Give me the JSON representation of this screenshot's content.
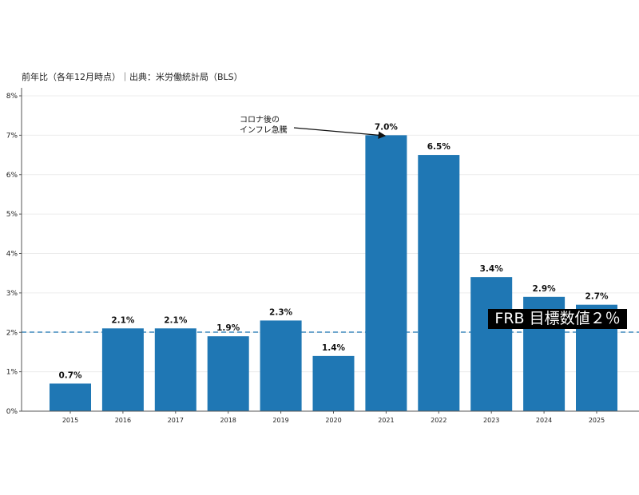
{
  "header": {
    "subtitle": "前年比（各年12月時点）｜出典：米労働統計局（BLS）"
  },
  "chart_data": {
    "type": "bar",
    "title": "",
    "subtitle": "前年比（各年12月時点）｜出典：米労働統計局（BLS）",
    "xlabel": "",
    "ylabel": "",
    "categories": [
      "2015",
      "2016",
      "2017",
      "2018",
      "2019",
      "2020",
      "2021",
      "2022",
      "2023",
      "2024",
      "2025"
    ],
    "values": [
      0.7,
      2.1,
      2.1,
      1.9,
      2.3,
      1.4,
      7.0,
      6.5,
      3.4,
      2.9,
      2.7
    ],
    "value_labels": [
      "0.7%",
      "2.1%",
      "2.1%",
      "1.9%",
      "2.3%",
      "1.4%",
      "7.0%",
      "6.5%",
      "3.4%",
      "2.9%",
      "2.7%"
    ],
    "ylim": [
      0,
      8
    ],
    "yticks": [
      "0%",
      "1%",
      "2%",
      "3%",
      "4%",
      "5%",
      "6%",
      "7%",
      "8%"
    ],
    "grid": "horizontal",
    "bar_color": "#1f77b4",
    "reference_line": {
      "value": 2,
      "style": "dashed",
      "color": "#1f77b4",
      "label": "FRB 目標数値２％"
    },
    "annotations": [
      {
        "text_line1": "コロナ後の",
        "text_line2": "インフレ急騰",
        "points_to": "2021",
        "arrow": true
      }
    ],
    "legend": null
  }
}
